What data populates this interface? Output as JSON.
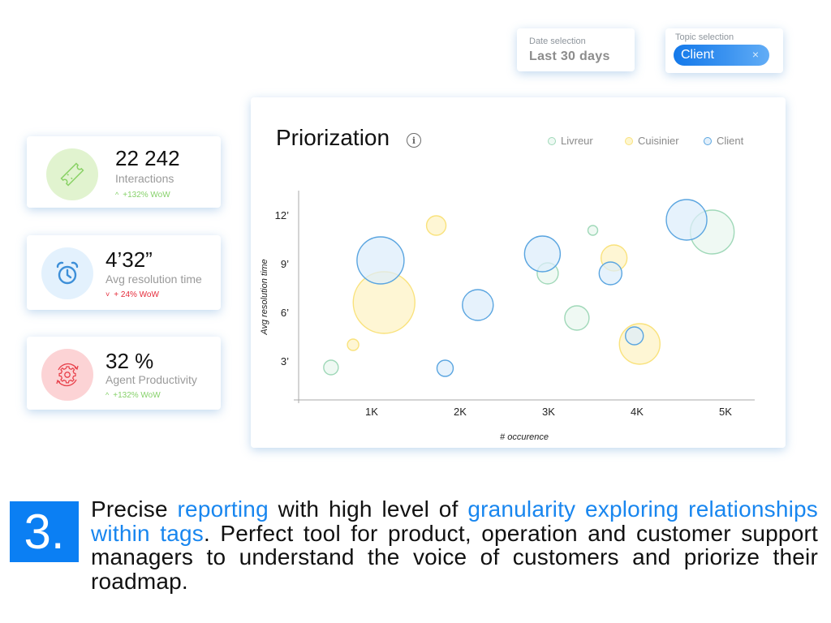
{
  "filters": {
    "date": {
      "label": "Date selection",
      "value": "Last 30 days"
    },
    "topic": {
      "label": "Topic selection",
      "chip": "Client",
      "chip_close": "×"
    }
  },
  "kpis": [
    {
      "value": "22 242",
      "label": "Interactions",
      "delta_icon": "^",
      "delta": "+132% WoW",
      "delta_color": "#86d16a",
      "icon": "ticket-icon",
      "icon_bg": "#e1f3cf",
      "icon_color": "#8ad266"
    },
    {
      "value": "4’32”",
      "label": "Avg resolution time",
      "delta_icon": "˅",
      "delta": "+ 24% WoW",
      "delta_color": "#e52b3a",
      "icon": "alarm-clock-icon",
      "icon_bg": "#e3f1fd",
      "icon_color": "#3d8fd8"
    },
    {
      "value": "32 %",
      "label": "Agent Productivity",
      "delta_icon": "^",
      "delta": "+132% WoW",
      "delta_color": "#86d16a",
      "icon": "gear-cycle-icon",
      "icon_bg": "#fcd3d5",
      "icon_color": "#e8404a"
    }
  ],
  "chart": {
    "title": "Priorization",
    "info": "i",
    "legend": [
      {
        "label": "Livreur",
        "stroke": "#9fd8b8",
        "fill": "#eef9f3"
      },
      {
        "label": "Cuisinier",
        "stroke": "#f9e27c",
        "fill": "#fdf6cf"
      },
      {
        "label": "Client",
        "stroke": "#5aa5e0",
        "fill": "#e3f0fb"
      }
    ]
  },
  "chart_data": {
    "type": "scatter",
    "title": "Priorization",
    "xlabel": "# occurence",
    "ylabel": "Avg resolution time",
    "x_ticks": [
      {
        "label": "1K",
        "value": 1000
      },
      {
        "label": "2K",
        "value": 2000
      },
      {
        "label": "3K",
        "value": 3000
      },
      {
        "label": "4K",
        "value": 4000
      },
      {
        "label": "5K",
        "value": 5000
      }
    ],
    "y_ticks": [
      {
        "label": "3’",
        "value": 3
      },
      {
        "label": "6’",
        "value": 6
      },
      {
        "label": "9’",
        "value": 9
      },
      {
        "label": "12’",
        "value": 12
      }
    ],
    "xlim": [
      170,
      5300
    ],
    "ylim": [
      0.6,
      13.5
    ],
    "grid": false,
    "legend_position": "top-right",
    "series": [
      {
        "name": "Cuisinier",
        "stroke": "#f9e27c",
        "fill": "#fdf3c4",
        "points": [
          {
            "x": 790,
            "y": 4.0,
            "size": 7
          },
          {
            "x": 1140,
            "y": 6.6,
            "size": 38
          },
          {
            "x": 1730,
            "y": 11.35,
            "size": 12
          },
          {
            "x": 3740,
            "y": 9.35,
            "size": 16
          },
          {
            "x": 4030,
            "y": 4.05,
            "size": 25
          }
        ]
      },
      {
        "name": "Livreur",
        "stroke": "#9fd8b8",
        "fill": "#e9f7ef",
        "points": [
          {
            "x": 540,
            "y": 2.6,
            "size": 9
          },
          {
            "x": 2990,
            "y": 8.4,
            "size": 13
          },
          {
            "x": 3500,
            "y": 11.05,
            "size": 6
          },
          {
            "x": 3320,
            "y": 5.65,
            "size": 15
          },
          {
            "x": 4850,
            "y": 10.95,
            "size": 27
          }
        ]
      },
      {
        "name": "Client",
        "stroke": "#5aa5e0",
        "fill": "#dcedfb",
        "points": [
          {
            "x": 1100,
            "y": 9.2,
            "size": 29
          },
          {
            "x": 1830,
            "y": 2.55,
            "size": 10
          },
          {
            "x": 2200,
            "y": 6.45,
            "size": 19
          },
          {
            "x": 2930,
            "y": 9.6,
            "size": 22
          },
          {
            "x": 3700,
            "y": 8.4,
            "size": 14
          },
          {
            "x": 3970,
            "y": 4.55,
            "size": 11
          },
          {
            "x": 4560,
            "y": 11.7,
            "size": 25
          }
        ]
      }
    ]
  },
  "footer": {
    "step": "3.",
    "segments": [
      {
        "text": "Precise ",
        "highlight": false
      },
      {
        "text": "reporting",
        "highlight": true
      },
      {
        "text": " with high level of ",
        "highlight": false
      },
      {
        "text": "granularity exploring relationships within tags",
        "highlight": true
      },
      {
        "text": ". Perfect tool for product, operation and customer support managers to understand the voice of customers and priorize their roadmap.",
        "highlight": false
      }
    ]
  }
}
